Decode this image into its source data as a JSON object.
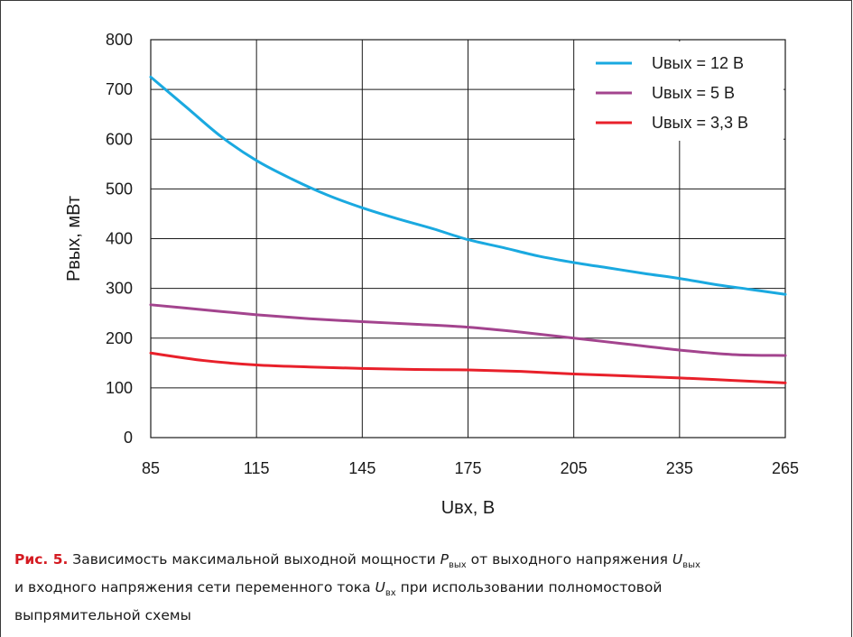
{
  "chart_data": {
    "type": "line",
    "xlabel": "Uвх, В",
    "ylabel": "Pвых, мВт",
    "xlim": [
      85,
      265
    ],
    "ylim": [
      0,
      800
    ],
    "x_ticks": [
      "85",
      "115",
      "145",
      "175",
      "205",
      "235",
      "265"
    ],
    "y_ticks": [
      "0",
      "100",
      "200",
      "300",
      "400",
      "500",
      "600",
      "700",
      "800"
    ],
    "grid": true,
    "legend_position": "top-right",
    "series": [
      {
        "name": "Uвых = 12 В",
        "color": "#1aa9e0",
        "x": [
          85,
          95,
          105,
          115,
          125,
          135,
          145,
          155,
          165,
          175,
          185,
          195,
          205,
          215,
          225,
          235,
          245,
          255,
          265
        ],
        "y": [
          725,
          665,
          605,
          557,
          520,
          488,
          462,
          440,
          420,
          398,
          382,
          365,
          352,
          341,
          330,
          320,
          308,
          298,
          288
        ]
      },
      {
        "name": "Uвых = 5 В",
        "color": "#a3448e",
        "x": [
          85,
          100,
          115,
          130,
          145,
          160,
          175,
          190,
          205,
          220,
          235,
          250,
          265
        ],
        "y": [
          267,
          257,
          247,
          239,
          233,
          228,
          222,
          212,
          200,
          188,
          176,
          167,
          165
        ]
      },
      {
        "name": "Uвых = 3,3 В",
        "color": "#e8202a",
        "x": [
          85,
          100,
          115,
          130,
          145,
          160,
          175,
          190,
          205,
          220,
          235,
          250,
          265
        ],
        "y": [
          170,
          155,
          146,
          142,
          139,
          137,
          136,
          133,
          128,
          124,
          120,
          115,
          110
        ]
      }
    ]
  },
  "caption": {
    "fig_label": "Рис. 5.",
    "text_1": " Зависимость максимальной выходной мощности ",
    "sym_p": "P",
    "sub_p": "вых",
    "text_2": " от выходного напряжения ",
    "sym_u1": "U",
    "sub_u1": "вых",
    "text_3": "и входного напряжения сети переменного тока ",
    "sym_u2": "U",
    "sub_u2": "вх",
    "text_4": " при использовании полномостовой",
    "text_5": "выпрямительной схемы"
  }
}
